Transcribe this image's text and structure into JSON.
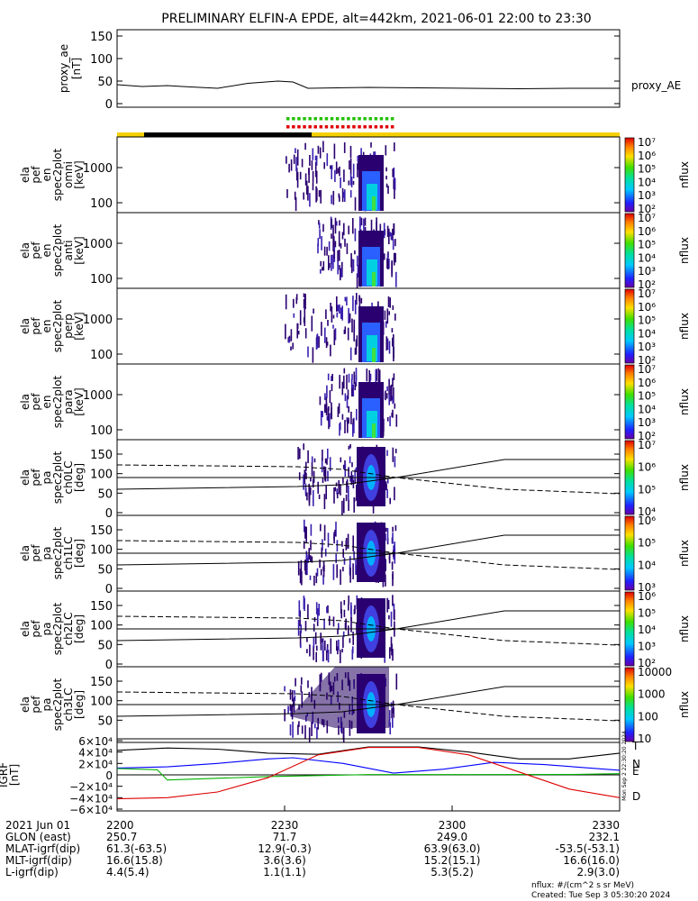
{
  "title": "PRELIMINARY ELFIN-A EPDE, alt=442km, 2021-06-01 22:00 to 23:30",
  "colors": {
    "axis": "#000000",
    "bar_yellow": "#f5d000",
    "bar_black": "#000000",
    "marker_green": "#22c000",
    "marker_red": "#e00000",
    "T": "#000000",
    "N": "#0000ff",
    "E": "#00b000",
    "D": "#dd0000"
  },
  "chart_data": [
    {
      "type": "line",
      "ylabel": [
        "proxy_ae",
        "[nT]"
      ],
      "yticks": [
        "150",
        "100",
        "50",
        "0"
      ],
      "ylim": [
        0,
        150
      ],
      "series": [
        {
          "name": "proxy_AE",
          "x_frac": [
            0,
            0.05,
            0.1,
            0.13,
            0.2,
            0.26,
            0.32,
            0.35,
            0.38,
            0.5,
            0.6,
            0.7,
            0.8,
            0.9,
            1
          ],
          "values": [
            42,
            38,
            40,
            38,
            34,
            45,
            50,
            48,
            34,
            36,
            35,
            34,
            33,
            34,
            34
          ]
        }
      ]
    },
    {
      "type": "heatmap",
      "ylabel": [
        "ela",
        "pef",
        "en",
        "spec2plot",
        "omni",
        "[keV]"
      ],
      "yticks": [
        "1000",
        "100"
      ],
      "colorbar": {
        "label": "nflux",
        "ticks": [
          "10⁷",
          "10⁶",
          "10⁵",
          "10⁴",
          "10³",
          "10²"
        ]
      }
    },
    {
      "type": "heatmap",
      "ylabel": [
        "ela",
        "pef",
        "en",
        "spec2plot",
        "anti",
        "[keV]"
      ],
      "yticks": [
        "1000",
        "100"
      ],
      "colorbar": {
        "label": "nflux",
        "ticks": [
          "10⁷",
          "10⁶",
          "10⁵",
          "10⁴",
          "10³",
          "10²"
        ]
      }
    },
    {
      "type": "heatmap",
      "ylabel": [
        "ela",
        "pef",
        "en",
        "spec2plot",
        "perp",
        "[keV]"
      ],
      "yticks": [
        "1000",
        "100"
      ],
      "colorbar": {
        "label": "nflux",
        "ticks": [
          "10⁷",
          "10⁶",
          "10⁵",
          "10⁴",
          "10³",
          "10²"
        ]
      }
    },
    {
      "type": "heatmap",
      "ylabel": [
        "ela",
        "pef",
        "en",
        "spec2plot",
        "para",
        "[keV]"
      ],
      "yticks": [
        "1000",
        "100"
      ],
      "colorbar": {
        "label": "nflux",
        "ticks": [
          "10⁷",
          "10⁶",
          "10⁵",
          "10⁴",
          "10³",
          "10²"
        ]
      }
    },
    {
      "type": "heatmap",
      "ylabel": [
        "ela",
        "pef",
        "pa",
        "spec2plot",
        "ch0LC",
        "[deg]"
      ],
      "yticks": [
        "150",
        "100",
        "50",
        "0"
      ],
      "colorbar": {
        "label": "nflux",
        "ticks": [
          "10⁷",
          "10⁶",
          "10⁵",
          "10⁴"
        ]
      }
    },
    {
      "type": "heatmap",
      "ylabel": [
        "ela",
        "pef",
        "pa",
        "spec2plot",
        "ch1LC",
        "[deg]"
      ],
      "yticks": [
        "150",
        "100",
        "50",
        "0"
      ],
      "colorbar": {
        "label": "nflux",
        "ticks": [
          "10⁶",
          "10⁵",
          "10⁴",
          "10³"
        ]
      }
    },
    {
      "type": "heatmap",
      "ylabel": [
        "ela",
        "pef",
        "pa",
        "spec2plot",
        "ch2LC",
        "[deg]"
      ],
      "yticks": [
        "150",
        "100",
        "50",
        "0"
      ],
      "colorbar": {
        "label": "nflux",
        "ticks": [
          "10⁶",
          "10⁵",
          "10⁴",
          "10³",
          "10²"
        ]
      }
    },
    {
      "type": "heatmap",
      "ylabel": [
        "ela",
        "pef",
        "pa",
        "spec2plot",
        "ch3LC",
        "[deg]"
      ],
      "yticks": [
        "150",
        "100",
        "50"
      ],
      "colorbar": {
        "label": "nflux",
        "ticks": [
          "10000",
          "1000",
          "100",
          "10"
        ]
      }
    },
    {
      "type": "line",
      "ylabel": [
        "IGRF",
        "[nT]"
      ],
      "yticks": [
        "6×10⁴",
        "4×10⁴",
        "2×10⁴",
        "0",
        "−2×10⁴",
        "−4×10⁴",
        "−6×10⁴"
      ],
      "ylim": [
        -60000,
        60000
      ],
      "series": [
        {
          "name": "T",
          "x_frac": [
            0,
            0.1,
            0.2,
            0.3,
            0.4,
            0.5,
            0.6,
            0.7,
            0.8,
            0.9,
            1
          ],
          "values": [
            43000,
            47000,
            45000,
            38000,
            36000,
            49000,
            49000,
            40000,
            28000,
            28000,
            38000
          ]
        },
        {
          "name": "N",
          "x_frac": [
            0,
            0.1,
            0.2,
            0.3,
            0.35,
            0.45,
            0.55,
            0.65,
            0.75,
            0.85,
            1
          ],
          "values": [
            12000,
            14000,
            20000,
            28000,
            30000,
            20000,
            3000,
            10000,
            22000,
            18000,
            8000
          ]
        },
        {
          "name": "E",
          "x_frac": [
            0,
            0.08,
            0.1,
            0.3,
            0.5,
            0.7,
            0.9,
            1
          ],
          "values": [
            11000,
            9000,
            -9000,
            -3000,
            500,
            500,
            700,
            2000
          ]
        },
        {
          "name": "D",
          "x_frac": [
            0,
            0.1,
            0.2,
            0.3,
            0.4,
            0.5,
            0.6,
            0.7,
            0.8,
            0.9,
            1
          ],
          "values": [
            -42000,
            -40000,
            -30000,
            -5000,
            35000,
            48000,
            48000,
            35000,
            5000,
            -25000,
            -40000
          ]
        }
      ]
    }
  ],
  "xaxis": {
    "ticks": [
      "2200",
      "2230",
      "2300",
      "2330"
    ],
    "rows": [
      {
        "label": "2021 Jun 01",
        "values": [
          "2200",
          "2230",
          "2300",
          "2330"
        ]
      },
      {
        "label": "GLON (east)",
        "values": [
          "250.7",
          "71.7",
          "249.0",
          "232.1"
        ]
      },
      {
        "label": "MLAT-igrf(dip)",
        "values": [
          "61.3(-63.5)",
          "12.9(-0.3)",
          "63.9(63.0)",
          "-53.5(-53.1)"
        ]
      },
      {
        "label": "MLT-igrf(dip)",
        "values": [
          "16.6(15.8)",
          "3.6(3.6)",
          "15.2(15.1)",
          "16.6(16.0)"
        ]
      },
      {
        "label": "L-igrf(dip)",
        "values": [
          "4.4(5.4)",
          "1.1(1.1)",
          "5.3(5.2)",
          "2.9(3.0)"
        ]
      }
    ]
  },
  "footer": {
    "units": "nflux: #/(cm^2 s sr MeV)",
    "created": "Created: Tue Sep  3 05:30:20 2024",
    "side_stamp": "Mon Sep  2 22:30:20 2024"
  }
}
